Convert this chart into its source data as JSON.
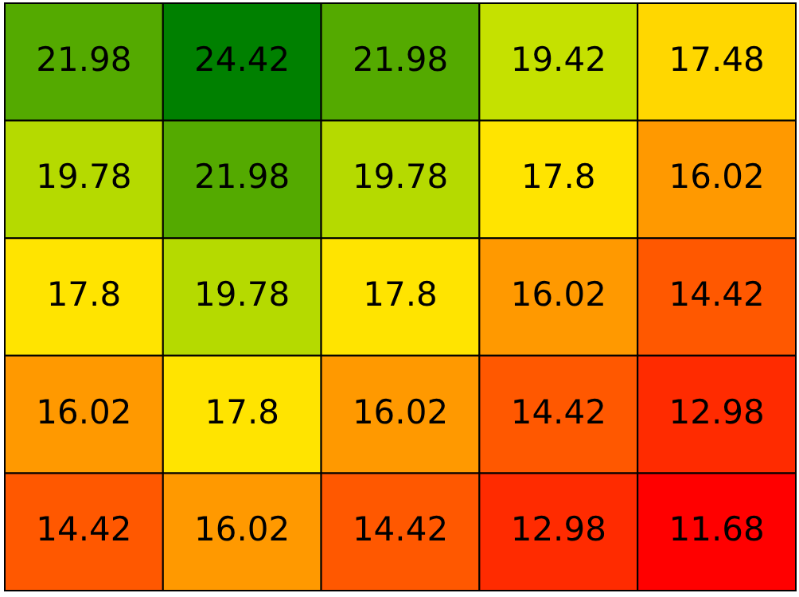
{
  "chart_data": {
    "type": "heatmap",
    "categories": [
      null,
      null,
      null,
      null,
      null
    ],
    "y_categories": [
      null,
      null,
      null,
      null,
      null
    ],
    "cells": [
      [
        21.98,
        24.42,
        21.98,
        19.42,
        17.48
      ],
      [
        19.78,
        21.98,
        19.78,
        17.8,
        16.02
      ],
      [
        17.8,
        19.78,
        17.8,
        16.02,
        14.42
      ],
      [
        16.02,
        17.8,
        16.02,
        14.42,
        12.98
      ],
      [
        14.42,
        16.02,
        14.42,
        12.98,
        11.68
      ]
    ],
    "tick_labels": false,
    "data_labels": true
  }
}
